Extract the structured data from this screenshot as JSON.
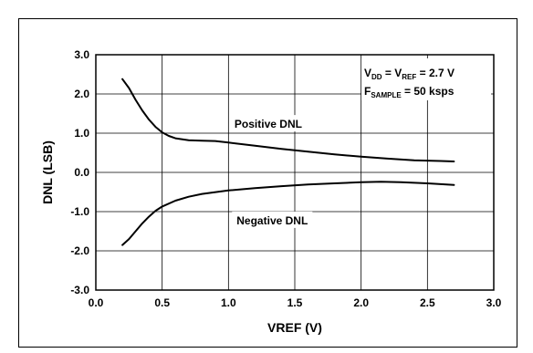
{
  "chart_data": {
    "type": "line",
    "xlabel": "VREF (V)",
    "ylabel": "DNL (LSB)",
    "xlim": [
      0.0,
      3.0
    ],
    "ylim": [
      -3.0,
      3.0
    ],
    "x_ticks": [
      "0.0",
      "0.5",
      "1.0",
      "1.5",
      "2.0",
      "2.5",
      "3.0"
    ],
    "y_ticks": [
      "3.0",
      "2.0",
      "1.0",
      "0.0",
      "-1.0",
      "-2.0",
      "-3.0"
    ],
    "grid": true,
    "annotation": {
      "line1": {
        "main": "V",
        "sub1": "DD",
        "mid": " = V",
        "sub2": "REF",
        "tail": " =  2.7 V"
      },
      "line2": {
        "main": "F",
        "sub": "SAMPLE",
        "tail": " = 50 ksps"
      }
    },
    "series": [
      {
        "name": "Positive DNL",
        "label_at": [
          1.3,
          1.23
        ],
        "x": [
          0.2,
          0.25,
          0.3,
          0.35,
          0.4,
          0.45,
          0.5,
          0.55,
          0.6,
          0.7,
          0.8,
          0.9,
          1.0,
          1.2,
          1.4,
          1.6,
          1.8,
          2.0,
          2.2,
          2.4,
          2.6,
          2.7
        ],
        "y": [
          2.38,
          2.15,
          1.85,
          1.58,
          1.35,
          1.16,
          1.02,
          0.93,
          0.87,
          0.82,
          0.81,
          0.8,
          0.76,
          0.68,
          0.6,
          0.53,
          0.46,
          0.4,
          0.35,
          0.31,
          0.29,
          0.28
        ]
      },
      {
        "name": "Negative DNL",
        "label_at": [
          1.33,
          -1.23
        ],
        "x": [
          0.2,
          0.25,
          0.3,
          0.35,
          0.4,
          0.45,
          0.5,
          0.6,
          0.7,
          0.8,
          1.0,
          1.2,
          1.4,
          1.6,
          1.8,
          2.0,
          2.15,
          2.3,
          2.5,
          2.7
        ],
        "y": [
          -1.85,
          -1.7,
          -1.5,
          -1.3,
          -1.13,
          -0.98,
          -0.87,
          -0.72,
          -0.62,
          -0.55,
          -0.46,
          -0.4,
          -0.35,
          -0.31,
          -0.28,
          -0.25,
          -0.24,
          -0.25,
          -0.28,
          -0.32
        ]
      }
    ]
  }
}
